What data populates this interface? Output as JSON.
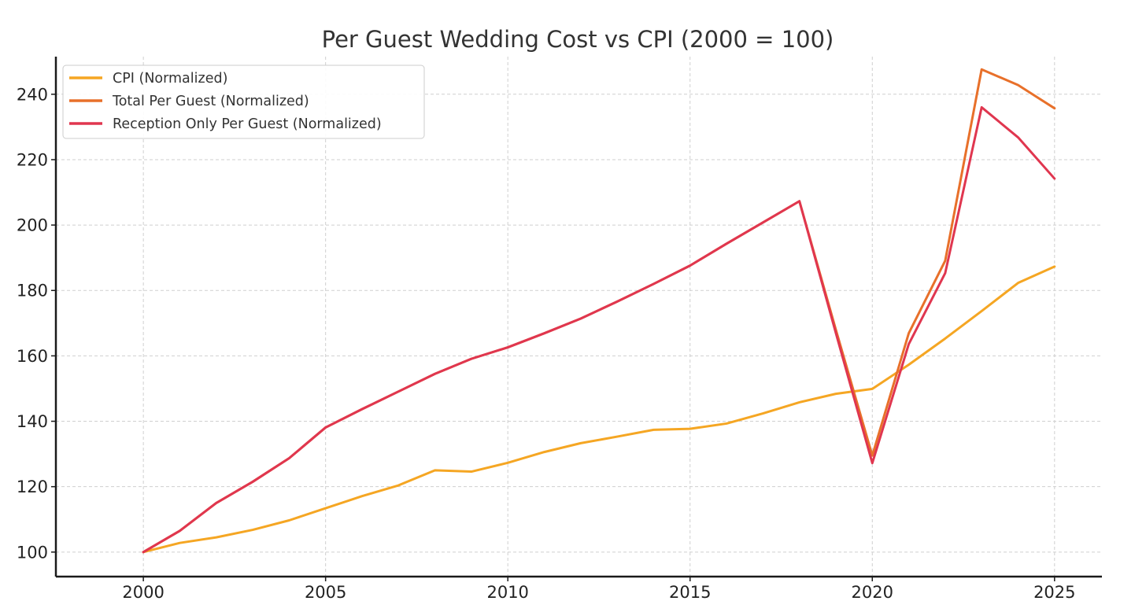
{
  "chart_data": {
    "type": "line",
    "title": "Per Guest Wedding Cost vs CPI (2000 = 100)",
    "xlabel": "",
    "ylabel": "",
    "x": [
      2000,
      2001,
      2002,
      2003,
      2004,
      2005,
      2006,
      2007,
      2008,
      2009,
      2010,
      2011,
      2012,
      2013,
      2014,
      2015,
      2016,
      2017,
      2018,
      2019,
      2020,
      2021,
      2022,
      2023,
      2024,
      2025
    ],
    "xlim": [
      1997.6,
      2026.3
    ],
    "ylim": [
      92.5,
      251.5
    ],
    "xticks": [
      2000,
      2005,
      2010,
      2015,
      2020,
      2025
    ],
    "yticks": [
      100,
      120,
      140,
      160,
      180,
      200,
      220,
      240
    ],
    "grid": true,
    "legend_position": "top-left",
    "series": [
      {
        "name": "CPI (Normalized)",
        "color": "#f5a623",
        "values": [
          100.0,
          102.8,
          104.5,
          106.8,
          109.7,
          113.4,
          117.1,
          120.4,
          125.0,
          124.6,
          127.3,
          130.6,
          133.3,
          135.3,
          137.4,
          137.7,
          139.3,
          142.4,
          145.8,
          148.4,
          149.9,
          157.3,
          165.3,
          173.7,
          182.3,
          187.3
        ]
      },
      {
        "name": "Total Per Guest (Normalized)",
        "color": "#e8702a",
        "values": [
          100.0,
          106.5,
          115.0,
          121.5,
          128.7,
          138.1,
          143.7,
          149.1,
          154.5,
          159.1,
          162.6,
          166.9,
          171.4,
          176.6,
          182.0,
          187.6,
          194.3,
          200.8,
          207.3,
          168.0,
          129.5,
          166.9,
          189.1,
          247.6,
          242.8,
          235.7
        ]
      },
      {
        "name": "Reception Only Per Guest (Normalized)",
        "color": "#e0364f",
        "values": [
          100.0,
          106.5,
          115.0,
          121.5,
          128.7,
          138.1,
          143.7,
          149.1,
          154.5,
          159.1,
          162.6,
          166.9,
          171.4,
          176.6,
          182.0,
          187.6,
          194.3,
          200.8,
          207.3,
          167.0,
          127.2,
          163.6,
          185.3,
          236.0,
          226.8,
          214.2
        ]
      }
    ]
  }
}
